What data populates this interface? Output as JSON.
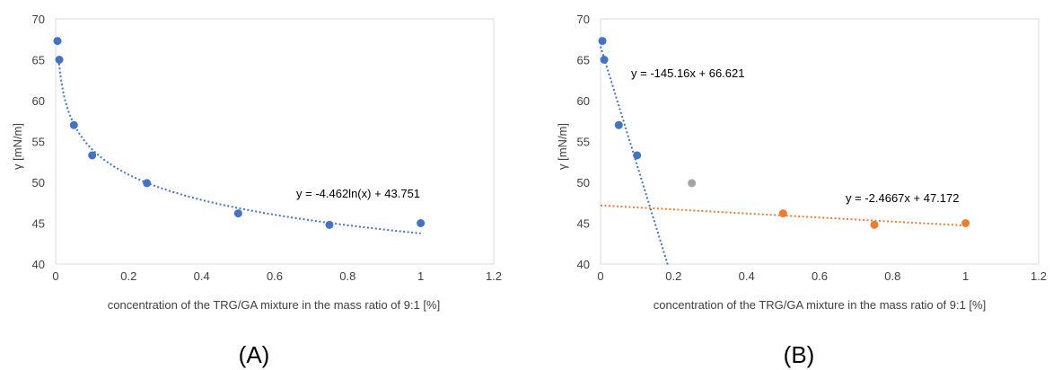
{
  "chart_data": [
    {
      "type": "scatter",
      "panel_label": "(A)",
      "xlabel": "concentration of the TRG/GA mixture in the mass ratio of 9:1 [%]",
      "ylabel": "γ [mN/m]",
      "xlim": [
        0,
        1.2
      ],
      "ylim": [
        40,
        70
      ],
      "xticks": [
        "0",
        "0.2",
        "0.4",
        "0.6",
        "0.8",
        "1",
        "1.2"
      ],
      "yticks": [
        "40",
        "45",
        "50",
        "55",
        "60",
        "65",
        "70"
      ],
      "grid": false,
      "series": [
        {
          "color": "#4472c4",
          "x": [
            0.005,
            0.01,
            0.05,
            0.1,
            0.25,
            0.5,
            0.75,
            1.0
          ],
          "y": [
            67.3,
            65.0,
            57.0,
            53.3,
            49.9,
            46.2,
            44.8,
            45.0
          ]
        }
      ],
      "trendlines": [
        {
          "kind": "log",
          "a": -4.462,
          "b": 43.751,
          "x_from": 0.0085,
          "x_to": 1.0,
          "color": "#4472c4",
          "label": "y = -4.462ln(x) + 43.751"
        }
      ]
    },
    {
      "type": "scatter",
      "panel_label": "(B)",
      "xlabel": "concentration of the TRG/GA mixture in the mass ratio of 9:1 [%]",
      "ylabel": "γ [mN/m]",
      "xlim": [
        0,
        1.2
      ],
      "ylim": [
        40,
        70
      ],
      "xticks": [
        "0",
        "0.2",
        "0.4",
        "0.6",
        "0.8",
        "1",
        "1.2"
      ],
      "yticks": [
        "40",
        "45",
        "50",
        "55",
        "60",
        "65",
        "70"
      ],
      "grid": false,
      "series": [
        {
          "color": "#4472c4",
          "x": [
            0.005,
            0.01,
            0.05,
            0.1
          ],
          "y": [
            67.3,
            65.0,
            57.0,
            53.3
          ]
        },
        {
          "color": "#a5a5a5",
          "x": [
            0.25
          ],
          "y": [
            49.9
          ]
        },
        {
          "color": "#ed7d31",
          "x": [
            0.5,
            0.75,
            1.0
          ],
          "y": [
            46.2,
            44.8,
            45.0
          ]
        }
      ],
      "trendlines": [
        {
          "kind": "linear",
          "m": -145.16,
          "b": 66.621,
          "x_from": 0.0,
          "x_to": 0.184,
          "color": "#4472c4",
          "label": "y = -145.16x + 66.621"
        },
        {
          "kind": "linear",
          "m": -2.4667,
          "b": 47.172,
          "x_from": 0.0,
          "x_to": 1.0,
          "color": "#ed7d31",
          "label": "y = -2.4667x + 47.172"
        }
      ]
    }
  ]
}
